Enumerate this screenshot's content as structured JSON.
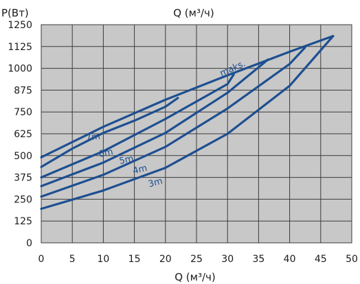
{
  "chart_data": {
    "type": "line",
    "top_title": "Q (м³/ч)",
    "ylabel": "P(Вт)",
    "xlabel": "Q (м³/ч)",
    "xlim": [
      0,
      50
    ],
    "ylim": [
      0,
      1250
    ],
    "x_ticks": [
      0,
      5,
      10,
      15,
      20,
      25,
      30,
      35,
      40,
      45,
      50
    ],
    "y_ticks": [
      0,
      125,
      250,
      375,
      500,
      625,
      750,
      875,
      1000,
      1125,
      1250
    ],
    "grid": true,
    "plot_background": "#c8c8c8",
    "line_color": "#1d4f91",
    "series": [
      {
        "name": "maks.",
        "x": [
          0,
          10,
          20,
          30,
          40,
          47
        ],
        "y": [
          490,
          665,
          820,
          960,
          1095,
          1185
        ]
      },
      {
        "name": "7m",
        "x": [
          0,
          5,
          10,
          15,
          20,
          22
        ],
        "y": [
          435,
          540,
          630,
          700,
          780,
          830
        ]
      },
      {
        "name": "6m",
        "x": [
          0,
          10,
          20,
          30,
          31
        ],
        "y": [
          375,
          525,
          710,
          910,
          965
        ]
      },
      {
        "name": "5m",
        "x": [
          0,
          10,
          20,
          30,
          36.5
        ],
        "y": [
          325,
          460,
          630,
          860,
          1050
        ]
      },
      {
        "name": "4m",
        "x": [
          0,
          10,
          20,
          30,
          40,
          42.5
        ],
        "y": [
          265,
          390,
          550,
          770,
          1025,
          1120
        ]
      },
      {
        "name": "3m",
        "x": [
          0,
          10,
          20,
          30,
          40,
          47
        ],
        "y": [
          195,
          300,
          430,
          625,
          900,
          1185
        ]
      }
    ]
  }
}
